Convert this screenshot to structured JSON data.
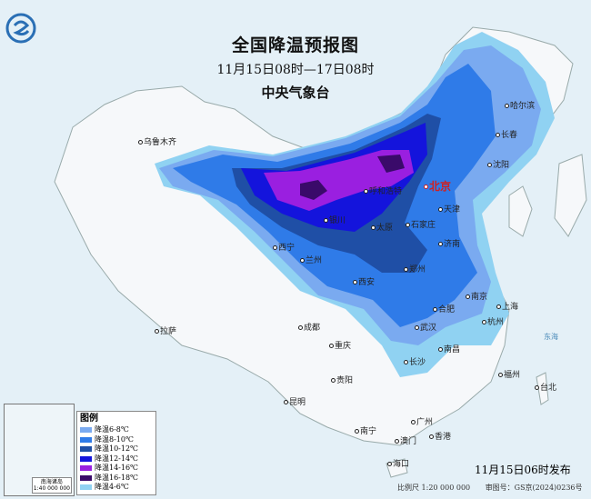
{
  "header": {
    "title": "全国降温预报图",
    "period": "11月15日08时—17日08时",
    "issuer": "中央气象台"
  },
  "logo": {
    "name": "cma-logo",
    "color": "#2a6fb5"
  },
  "legend": {
    "title": "图例",
    "items": [
      {
        "label": "降温6-8℃",
        "color": "#7aaaf0"
      },
      {
        "label": "降温8-10℃",
        "color": "#2f7be8"
      },
      {
        "label": "降温10-12℃",
        "color": "#1f4fa6"
      },
      {
        "label": "降温12-14℃",
        "color": "#1414dc"
      },
      {
        "label": "降温14-16℃",
        "color": "#9a1fe0"
      },
      {
        "label": "降温16-18℃",
        "color": "#3a0a6a"
      },
      {
        "label": "降温4-6℃",
        "color": "#90d2f2"
      }
    ]
  },
  "inset": {
    "caption": "南海诸岛",
    "scale": "1:40 000 000"
  },
  "cities": [
    {
      "name": "乌鲁木齐"
    },
    {
      "name": "哈尔滨"
    },
    {
      "name": "长春"
    },
    {
      "name": "沈阳"
    },
    {
      "name": "北京"
    },
    {
      "name": "天津"
    },
    {
      "name": "呼和浩特"
    },
    {
      "name": "银川"
    },
    {
      "name": "太原"
    },
    {
      "name": "石家庄"
    },
    {
      "name": "济南"
    },
    {
      "name": "西宁"
    },
    {
      "name": "兰州"
    },
    {
      "name": "郑州"
    },
    {
      "name": "西安"
    },
    {
      "name": "南京"
    },
    {
      "name": "上海"
    },
    {
      "name": "合肥"
    },
    {
      "name": "杭州"
    },
    {
      "name": "武汉"
    },
    {
      "name": "成都"
    },
    {
      "name": "重庆"
    },
    {
      "name": "南昌"
    },
    {
      "name": "长沙"
    },
    {
      "name": "拉萨"
    },
    {
      "name": "贵阳"
    },
    {
      "name": "福州"
    },
    {
      "name": "台北"
    },
    {
      "name": "昆明"
    },
    {
      "name": "南宁"
    },
    {
      "name": "广州"
    },
    {
      "name": "澳门"
    },
    {
      "name": "香港"
    },
    {
      "name": "海口"
    }
  ],
  "seas": {
    "east_sea": "东海"
  },
  "footer": {
    "issued": "11月15日06时发布",
    "scale": "比例尺 1:20 000 000",
    "review_no": "审图号：GS京(2024)0236号"
  }
}
